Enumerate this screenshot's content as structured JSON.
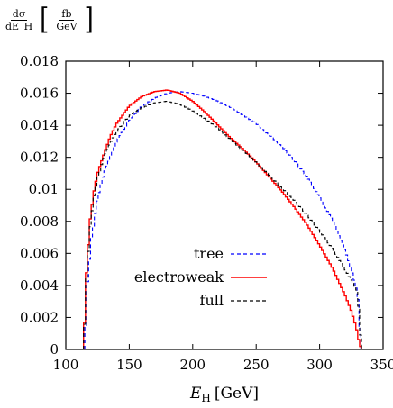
{
  "chart_data": {
    "type": "line",
    "ylabel": {
      "derivative_numerator": "dσ",
      "derivative_denominator": "dE_H",
      "unit_numerator": "fb",
      "unit_denominator": "GeV"
    },
    "xlabel": "E_H [GeV]",
    "xlabel_main": "E",
    "xlabel_sub": "H",
    "xlabel_unit": "[GeV]",
    "xlim": [
      100,
      350
    ],
    "ylim": [
      0,
      0.018
    ],
    "xticks": [
      100,
      150,
      200,
      250,
      300,
      350
    ],
    "xtick_labels": [
      "100",
      "150",
      "200",
      "250",
      "300",
      "350"
    ],
    "yticks": [
      0,
      0.002,
      0.004,
      0.006,
      0.008,
      0.01,
      0.012,
      0.014,
      0.016,
      0.018
    ],
    "ytick_labels": [
      "0",
      "0.002",
      "0.004",
      "0.006",
      "0.008",
      "0.01",
      "0.012",
      "0.014",
      "0.016",
      "0.018"
    ],
    "grid": false,
    "legend_position": "bottom-right",
    "series": [
      {
        "name": "tree",
        "color": "#0000ff",
        "style": "dashed",
        "x": [
          115,
          117,
          120,
          125,
          130,
          140,
          150,
          160,
          170,
          180,
          190,
          200,
          210,
          220,
          230,
          240,
          250,
          260,
          270,
          280,
          290,
          300,
          310,
          320,
          325,
          328,
          330,
          333
        ],
        "y": [
          0,
          0.004,
          0.0068,
          0.0094,
          0.011,
          0.013,
          0.0143,
          0.0152,
          0.0157,
          0.016,
          0.0161,
          0.016,
          0.0158,
          0.0155,
          0.0151,
          0.0146,
          0.0141,
          0.0134,
          0.0127,
          0.0118,
          0.0108,
          0.0095,
          0.0081,
          0.0062,
          0.005,
          0.0041,
          0.0034,
          0
        ]
      },
      {
        "name": "electroweak",
        "color": "#ff0000",
        "style": "solid",
        "x": [
          114,
          116,
          119,
          122,
          125,
          130,
          135,
          140,
          150,
          160,
          170,
          180,
          190,
          200,
          210,
          220,
          230,
          240,
          250,
          260,
          270,
          280,
          290,
          300,
          310,
          320,
          325,
          328,
          330,
          331,
          333
        ],
        "y": [
          0,
          0.0045,
          0.008,
          0.0098,
          0.011,
          0.0122,
          0.0133,
          0.0141,
          0.0152,
          0.0158,
          0.0161,
          0.0162,
          0.016,
          0.0155,
          0.0148,
          0.014,
          0.0132,
          0.0125,
          0.0117,
          0.0108,
          0.0099,
          0.0089,
          0.0078,
          0.0065,
          0.0051,
          0.0034,
          0.0024,
          0.0016,
          0.001,
          0.0005,
          0
        ]
      },
      {
        "name": "full",
        "color": "#000000",
        "style": "dashed",
        "x": [
          114,
          116,
          119,
          122,
          125,
          130,
          135,
          140,
          150,
          160,
          170,
          180,
          190,
          200,
          210,
          220,
          230,
          240,
          250,
          260,
          270,
          280,
          290,
          300,
          310,
          320,
          325,
          330,
          333
        ],
        "y": [
          0,
          0.0042,
          0.0075,
          0.0095,
          0.0107,
          0.012,
          0.0129,
          0.0136,
          0.0146,
          0.0151,
          0.0154,
          0.0155,
          0.0153,
          0.0149,
          0.0144,
          0.0138,
          0.0131,
          0.0124,
          0.0117,
          0.0109,
          0.0101,
          0.0093,
          0.0084,
          0.0074,
          0.0063,
          0.005,
          0.0043,
          0.0036,
          0
        ]
      }
    ]
  }
}
